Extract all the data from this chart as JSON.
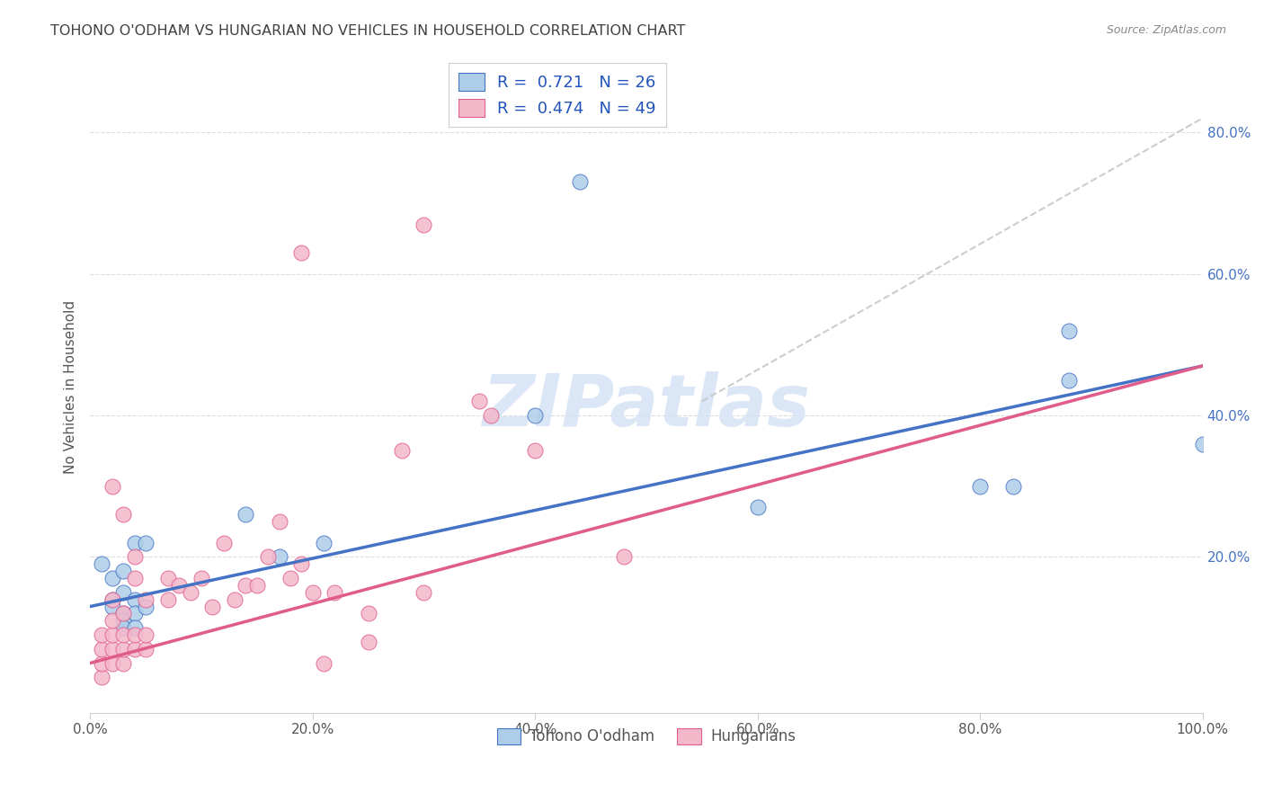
{
  "title": "TOHONO O'ODHAM VS HUNGARIAN NO VEHICLES IN HOUSEHOLD CORRELATION CHART",
  "source": "Source: ZipAtlas.com",
  "ylabel": "No Vehicles in Household",
  "legend_label1": "Tohono O'odham",
  "legend_label2": "Hungarians",
  "r1": "0.721",
  "n1": "26",
  "r2": "0.474",
  "n2": "49",
  "color_blue": "#aecde8",
  "color_pink": "#f4b8cb",
  "line_blue": "#4472c4",
  "line_pink": "#e05c8a",
  "line_dashed_color": "#c8c8c8",
  "bg_color": "#ffffff",
  "grid_color": "#dddddd",
  "title_color": "#404040",
  "legend_text_color": "#2255bb",
  "right_tick_color": "#4472c4",
  "xlim": [
    0.0,
    1.0
  ],
  "ylim": [
    -0.02,
    0.9
  ],
  "blue_points": [
    [
      0.01,
      0.19
    ],
    [
      0.02,
      0.17
    ],
    [
      0.02,
      0.14
    ],
    [
      0.02,
      0.13
    ],
    [
      0.03,
      0.18
    ],
    [
      0.03,
      0.15
    ],
    [
      0.03,
      0.12
    ],
    [
      0.03,
      0.11
    ],
    [
      0.03,
      0.1
    ],
    [
      0.04,
      0.14
    ],
    [
      0.04,
      0.12
    ],
    [
      0.04,
      0.1
    ],
    [
      0.04,
      0.22
    ],
    [
      0.05,
      0.22
    ],
    [
      0.05,
      0.13
    ],
    [
      0.14,
      0.26
    ],
    [
      0.17,
      0.2
    ],
    [
      0.21,
      0.22
    ],
    [
      0.4,
      0.4
    ],
    [
      0.44,
      0.73
    ],
    [
      0.6,
      0.27
    ],
    [
      0.8,
      0.3
    ],
    [
      0.83,
      0.3
    ],
    [
      0.88,
      0.45
    ],
    [
      0.88,
      0.52
    ],
    [
      1.0,
      0.36
    ]
  ],
  "pink_points": [
    [
      0.01,
      0.03
    ],
    [
      0.01,
      0.05
    ],
    [
      0.01,
      0.07
    ],
    [
      0.01,
      0.09
    ],
    [
      0.02,
      0.05
    ],
    [
      0.02,
      0.07
    ],
    [
      0.02,
      0.09
    ],
    [
      0.02,
      0.11
    ],
    [
      0.02,
      0.14
    ],
    [
      0.02,
      0.3
    ],
    [
      0.03,
      0.05
    ],
    [
      0.03,
      0.07
    ],
    [
      0.03,
      0.09
    ],
    [
      0.03,
      0.12
    ],
    [
      0.03,
      0.26
    ],
    [
      0.04,
      0.07
    ],
    [
      0.04,
      0.09
    ],
    [
      0.04,
      0.17
    ],
    [
      0.04,
      0.2
    ],
    [
      0.05,
      0.07
    ],
    [
      0.05,
      0.09
    ],
    [
      0.05,
      0.14
    ],
    [
      0.07,
      0.14
    ],
    [
      0.07,
      0.17
    ],
    [
      0.08,
      0.16
    ],
    [
      0.09,
      0.15
    ],
    [
      0.1,
      0.17
    ],
    [
      0.11,
      0.13
    ],
    [
      0.12,
      0.22
    ],
    [
      0.13,
      0.14
    ],
    [
      0.14,
      0.16
    ],
    [
      0.15,
      0.16
    ],
    [
      0.16,
      0.2
    ],
    [
      0.17,
      0.25
    ],
    [
      0.18,
      0.17
    ],
    [
      0.19,
      0.19
    ],
    [
      0.2,
      0.15
    ],
    [
      0.21,
      0.05
    ],
    [
      0.22,
      0.15
    ],
    [
      0.25,
      0.12
    ],
    [
      0.25,
      0.08
    ],
    [
      0.28,
      0.35
    ],
    [
      0.3,
      0.15
    ],
    [
      0.35,
      0.42
    ],
    [
      0.36,
      0.4
    ],
    [
      0.4,
      0.35
    ],
    [
      0.48,
      0.2
    ],
    [
      0.19,
      0.63
    ],
    [
      0.3,
      0.67
    ]
  ],
  "blue_line": [
    0.0,
    0.13,
    1.0,
    0.47
  ],
  "pink_line": [
    0.0,
    0.05,
    1.0,
    0.47
  ],
  "dashed_line": [
    0.55,
    0.42,
    1.0,
    0.82
  ],
  "watermark_text": "ZIPatlas",
  "watermark_color": "#d8e4f5",
  "watermark_alpha": 0.9,
  "right_yticks": [
    0.0,
    0.2,
    0.4,
    0.6,
    0.8
  ],
  "right_yticklabels": [
    "",
    "20.0%",
    "40.0%",
    "60.0%",
    "80.0%"
  ],
  "xticks": [
    0.0,
    0.2,
    0.4,
    0.6,
    0.8,
    1.0
  ],
  "xticklabels": [
    "0.0%",
    "20.0%",
    "40.0%",
    "60.0%",
    "80.0%",
    "100.0%"
  ]
}
